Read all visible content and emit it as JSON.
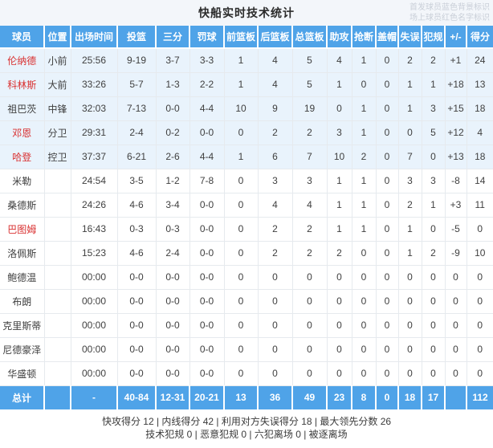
{
  "page": {
    "title": "快船实时技术统计",
    "legend_line1": "首发球员蓝色背景标识",
    "legend_line2": "场上球员红色名字标识"
  },
  "colors": {
    "header_blue": "#4fa3e8",
    "starter_row_bg": "#e9f3fc",
    "oncourt_name_red": "#d93030"
  },
  "table": {
    "columns": [
      "球员",
      "位置",
      "出场时间",
      "投篮",
      "三分",
      "罚球",
      "前篮板",
      "后篮板",
      "总篮板",
      "助攻",
      "抢断",
      "盖帽",
      "失误",
      "犯规",
      "+/-",
      "得分"
    ],
    "column_keys": [
      "player",
      "position",
      "minutes",
      "fg",
      "3pt",
      "ft",
      "oreb",
      "dreb",
      "treb",
      "ast",
      "stl",
      "blk",
      "to",
      "pf",
      "plusminus",
      "pts"
    ],
    "rows": [
      {
        "name": "伦纳德",
        "starter": true,
        "oncourt": true,
        "position": "小前",
        "minutes": "25:56",
        "fg": "9-19",
        "tp": "3-7",
        "ft": "3-3",
        "oreb": "1",
        "dreb": "4",
        "treb": "5",
        "ast": "4",
        "stl": "1",
        "blk": "0",
        "to": "2",
        "pf": "2",
        "pm": "+1",
        "pts": "24"
      },
      {
        "name": "科林斯",
        "starter": true,
        "oncourt": true,
        "position": "大前",
        "minutes": "33:26",
        "fg": "5-7",
        "tp": "1-3",
        "ft": "2-2",
        "oreb": "1",
        "dreb": "4",
        "treb": "5",
        "ast": "1",
        "stl": "0",
        "blk": "0",
        "to": "1",
        "pf": "1",
        "pm": "+18",
        "pts": "13"
      },
      {
        "name": "祖巴茨",
        "starter": true,
        "oncourt": false,
        "position": "中锋",
        "minutes": "32:03",
        "fg": "7-13",
        "tp": "0-0",
        "ft": "4-4",
        "oreb": "10",
        "dreb": "9",
        "treb": "19",
        "ast": "0",
        "stl": "1",
        "blk": "0",
        "to": "1",
        "pf": "3",
        "pm": "+15",
        "pts": "18"
      },
      {
        "name": "邓恩",
        "starter": true,
        "oncourt": true,
        "position": "分卫",
        "minutes": "29:31",
        "fg": "2-4",
        "tp": "0-2",
        "ft": "0-0",
        "oreb": "0",
        "dreb": "2",
        "treb": "2",
        "ast": "3",
        "stl": "1",
        "blk": "0",
        "to": "0",
        "pf": "5",
        "pm": "+12",
        "pts": "4"
      },
      {
        "name": "哈登",
        "starter": true,
        "oncourt": true,
        "position": "控卫",
        "minutes": "37:37",
        "fg": "6-21",
        "tp": "2-6",
        "ft": "4-4",
        "oreb": "1",
        "dreb": "6",
        "treb": "7",
        "ast": "10",
        "stl": "2",
        "blk": "0",
        "to": "7",
        "pf": "0",
        "pm": "+13",
        "pts": "18"
      },
      {
        "name": "米勒",
        "starter": false,
        "oncourt": false,
        "position": "",
        "minutes": "24:54",
        "fg": "3-5",
        "tp": "1-2",
        "ft": "7-8",
        "oreb": "0",
        "dreb": "3",
        "treb": "3",
        "ast": "1",
        "stl": "1",
        "blk": "0",
        "to": "3",
        "pf": "3",
        "pm": "-8",
        "pts": "14"
      },
      {
        "name": "桑德斯",
        "starter": false,
        "oncourt": false,
        "position": "",
        "minutes": "24:26",
        "fg": "4-6",
        "tp": "3-4",
        "ft": "0-0",
        "oreb": "0",
        "dreb": "4",
        "treb": "4",
        "ast": "1",
        "stl": "1",
        "blk": "0",
        "to": "2",
        "pf": "1",
        "pm": "+3",
        "pts": "11"
      },
      {
        "name": "巴图姆",
        "starter": false,
        "oncourt": true,
        "position": "",
        "minutes": "16:43",
        "fg": "0-3",
        "tp": "0-3",
        "ft": "0-0",
        "oreb": "0",
        "dreb": "2",
        "treb": "2",
        "ast": "1",
        "stl": "1",
        "blk": "0",
        "to": "1",
        "pf": "0",
        "pm": "-5",
        "pts": "0"
      },
      {
        "name": "洛佩斯",
        "starter": false,
        "oncourt": false,
        "position": "",
        "minutes": "15:23",
        "fg": "4-6",
        "tp": "2-4",
        "ft": "0-0",
        "oreb": "0",
        "dreb": "2",
        "treb": "2",
        "ast": "2",
        "stl": "0",
        "blk": "0",
        "to": "1",
        "pf": "2",
        "pm": "-9",
        "pts": "10"
      },
      {
        "name": "鲍德温",
        "starter": false,
        "oncourt": false,
        "position": "",
        "minutes": "00:00",
        "fg": "0-0",
        "tp": "0-0",
        "ft": "0-0",
        "oreb": "0",
        "dreb": "0",
        "treb": "0",
        "ast": "0",
        "stl": "0",
        "blk": "0",
        "to": "0",
        "pf": "0",
        "pm": "0",
        "pts": "0"
      },
      {
        "name": "布朗",
        "starter": false,
        "oncourt": false,
        "position": "",
        "minutes": "00:00",
        "fg": "0-0",
        "tp": "0-0",
        "ft": "0-0",
        "oreb": "0",
        "dreb": "0",
        "treb": "0",
        "ast": "0",
        "stl": "0",
        "blk": "0",
        "to": "0",
        "pf": "0",
        "pm": "0",
        "pts": "0"
      },
      {
        "name": "克里斯蒂",
        "starter": false,
        "oncourt": false,
        "position": "",
        "minutes": "00:00",
        "fg": "0-0",
        "tp": "0-0",
        "ft": "0-0",
        "oreb": "0",
        "dreb": "0",
        "treb": "0",
        "ast": "0",
        "stl": "0",
        "blk": "0",
        "to": "0",
        "pf": "0",
        "pm": "0",
        "pts": "0"
      },
      {
        "name": "尼德豪泽",
        "starter": false,
        "oncourt": false,
        "position": "",
        "minutes": "00:00",
        "fg": "0-0",
        "tp": "0-0",
        "ft": "0-0",
        "oreb": "0",
        "dreb": "0",
        "treb": "0",
        "ast": "0",
        "stl": "0",
        "blk": "0",
        "to": "0",
        "pf": "0",
        "pm": "0",
        "pts": "0"
      },
      {
        "name": "华盛顿",
        "starter": false,
        "oncourt": false,
        "position": "",
        "minutes": "00:00",
        "fg": "0-0",
        "tp": "0-0",
        "ft": "0-0",
        "oreb": "0",
        "dreb": "0",
        "treb": "0",
        "ast": "0",
        "stl": "0",
        "blk": "0",
        "to": "0",
        "pf": "0",
        "pm": "0",
        "pts": "0"
      }
    ],
    "total": {
      "name": "总计",
      "position": "",
      "minutes": "-",
      "fg": "40-84",
      "tp": "12-31",
      "ft": "20-21",
      "oreb": "13",
      "dreb": "36",
      "treb": "49",
      "ast": "23",
      "stl": "8",
      "blk": "0",
      "to": "18",
      "pf": "17",
      "pm": "",
      "pts": "112"
    }
  },
  "footer": {
    "line1": "快攻得分 12 | 内线得分 42 | 利用对方失误得分 18 | 最大领先分数 26",
    "line2": "技术犯规 0 | 恶意犯规 0 | 六犯离场 0 | 被逐离场"
  }
}
